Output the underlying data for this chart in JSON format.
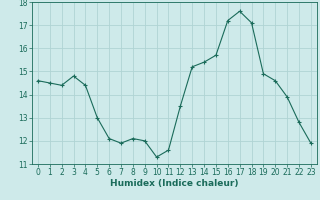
{
  "x": [
    0,
    1,
    2,
    3,
    4,
    5,
    6,
    7,
    8,
    9,
    10,
    11,
    12,
    13,
    14,
    15,
    16,
    17,
    18,
    19,
    20,
    21,
    22,
    23
  ],
  "y": [
    14.6,
    14.5,
    14.4,
    14.8,
    14.4,
    13.0,
    12.1,
    11.9,
    12.1,
    12.0,
    11.3,
    11.6,
    13.5,
    15.2,
    15.4,
    15.7,
    17.2,
    17.6,
    17.1,
    14.9,
    14.6,
    13.9,
    12.8,
    11.9
  ],
  "line_color": "#1a6b5a",
  "marker": "+",
  "bg_color": "#ceeaea",
  "grid_color": "#b0d4d4",
  "xlabel": "Humidex (Indice chaleur)",
  "ylim": [
    11,
    18
  ],
  "xlim": [
    -0.5,
    23.5
  ],
  "yticks": [
    11,
    12,
    13,
    14,
    15,
    16,
    17,
    18
  ],
  "xticks": [
    0,
    1,
    2,
    3,
    4,
    5,
    6,
    7,
    8,
    9,
    10,
    11,
    12,
    13,
    14,
    15,
    16,
    17,
    18,
    19,
    20,
    21,
    22,
    23
  ],
  "label_fontsize": 6.5,
  "tick_fontsize": 5.5
}
